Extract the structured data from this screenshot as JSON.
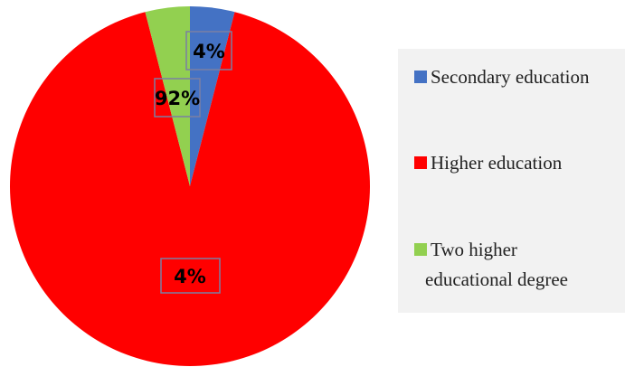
{
  "chart_data": {
    "type": "pie",
    "title": "",
    "slices": [
      {
        "label": "Secondary education",
        "value": 4,
        "display": "4%",
        "color": "#4472c4"
      },
      {
        "label": "Higher education",
        "value": 92,
        "display": "92%",
        "color": "#ff0000"
      },
      {
        "label": "Two higher educational degree",
        "value": 4,
        "display": "4%",
        "color": "#92d050"
      }
    ],
    "legend": {
      "placement": "right",
      "items": [
        {
          "lines": [
            "Secondary education"
          ]
        },
        {
          "lines": [
            "Higher education"
          ]
        },
        {
          "lines": [
            "Two higher",
            "educational degree"
          ]
        }
      ]
    },
    "data_label_border_color": "#7b7fa3",
    "legend_background": "#f2f2f2"
  }
}
